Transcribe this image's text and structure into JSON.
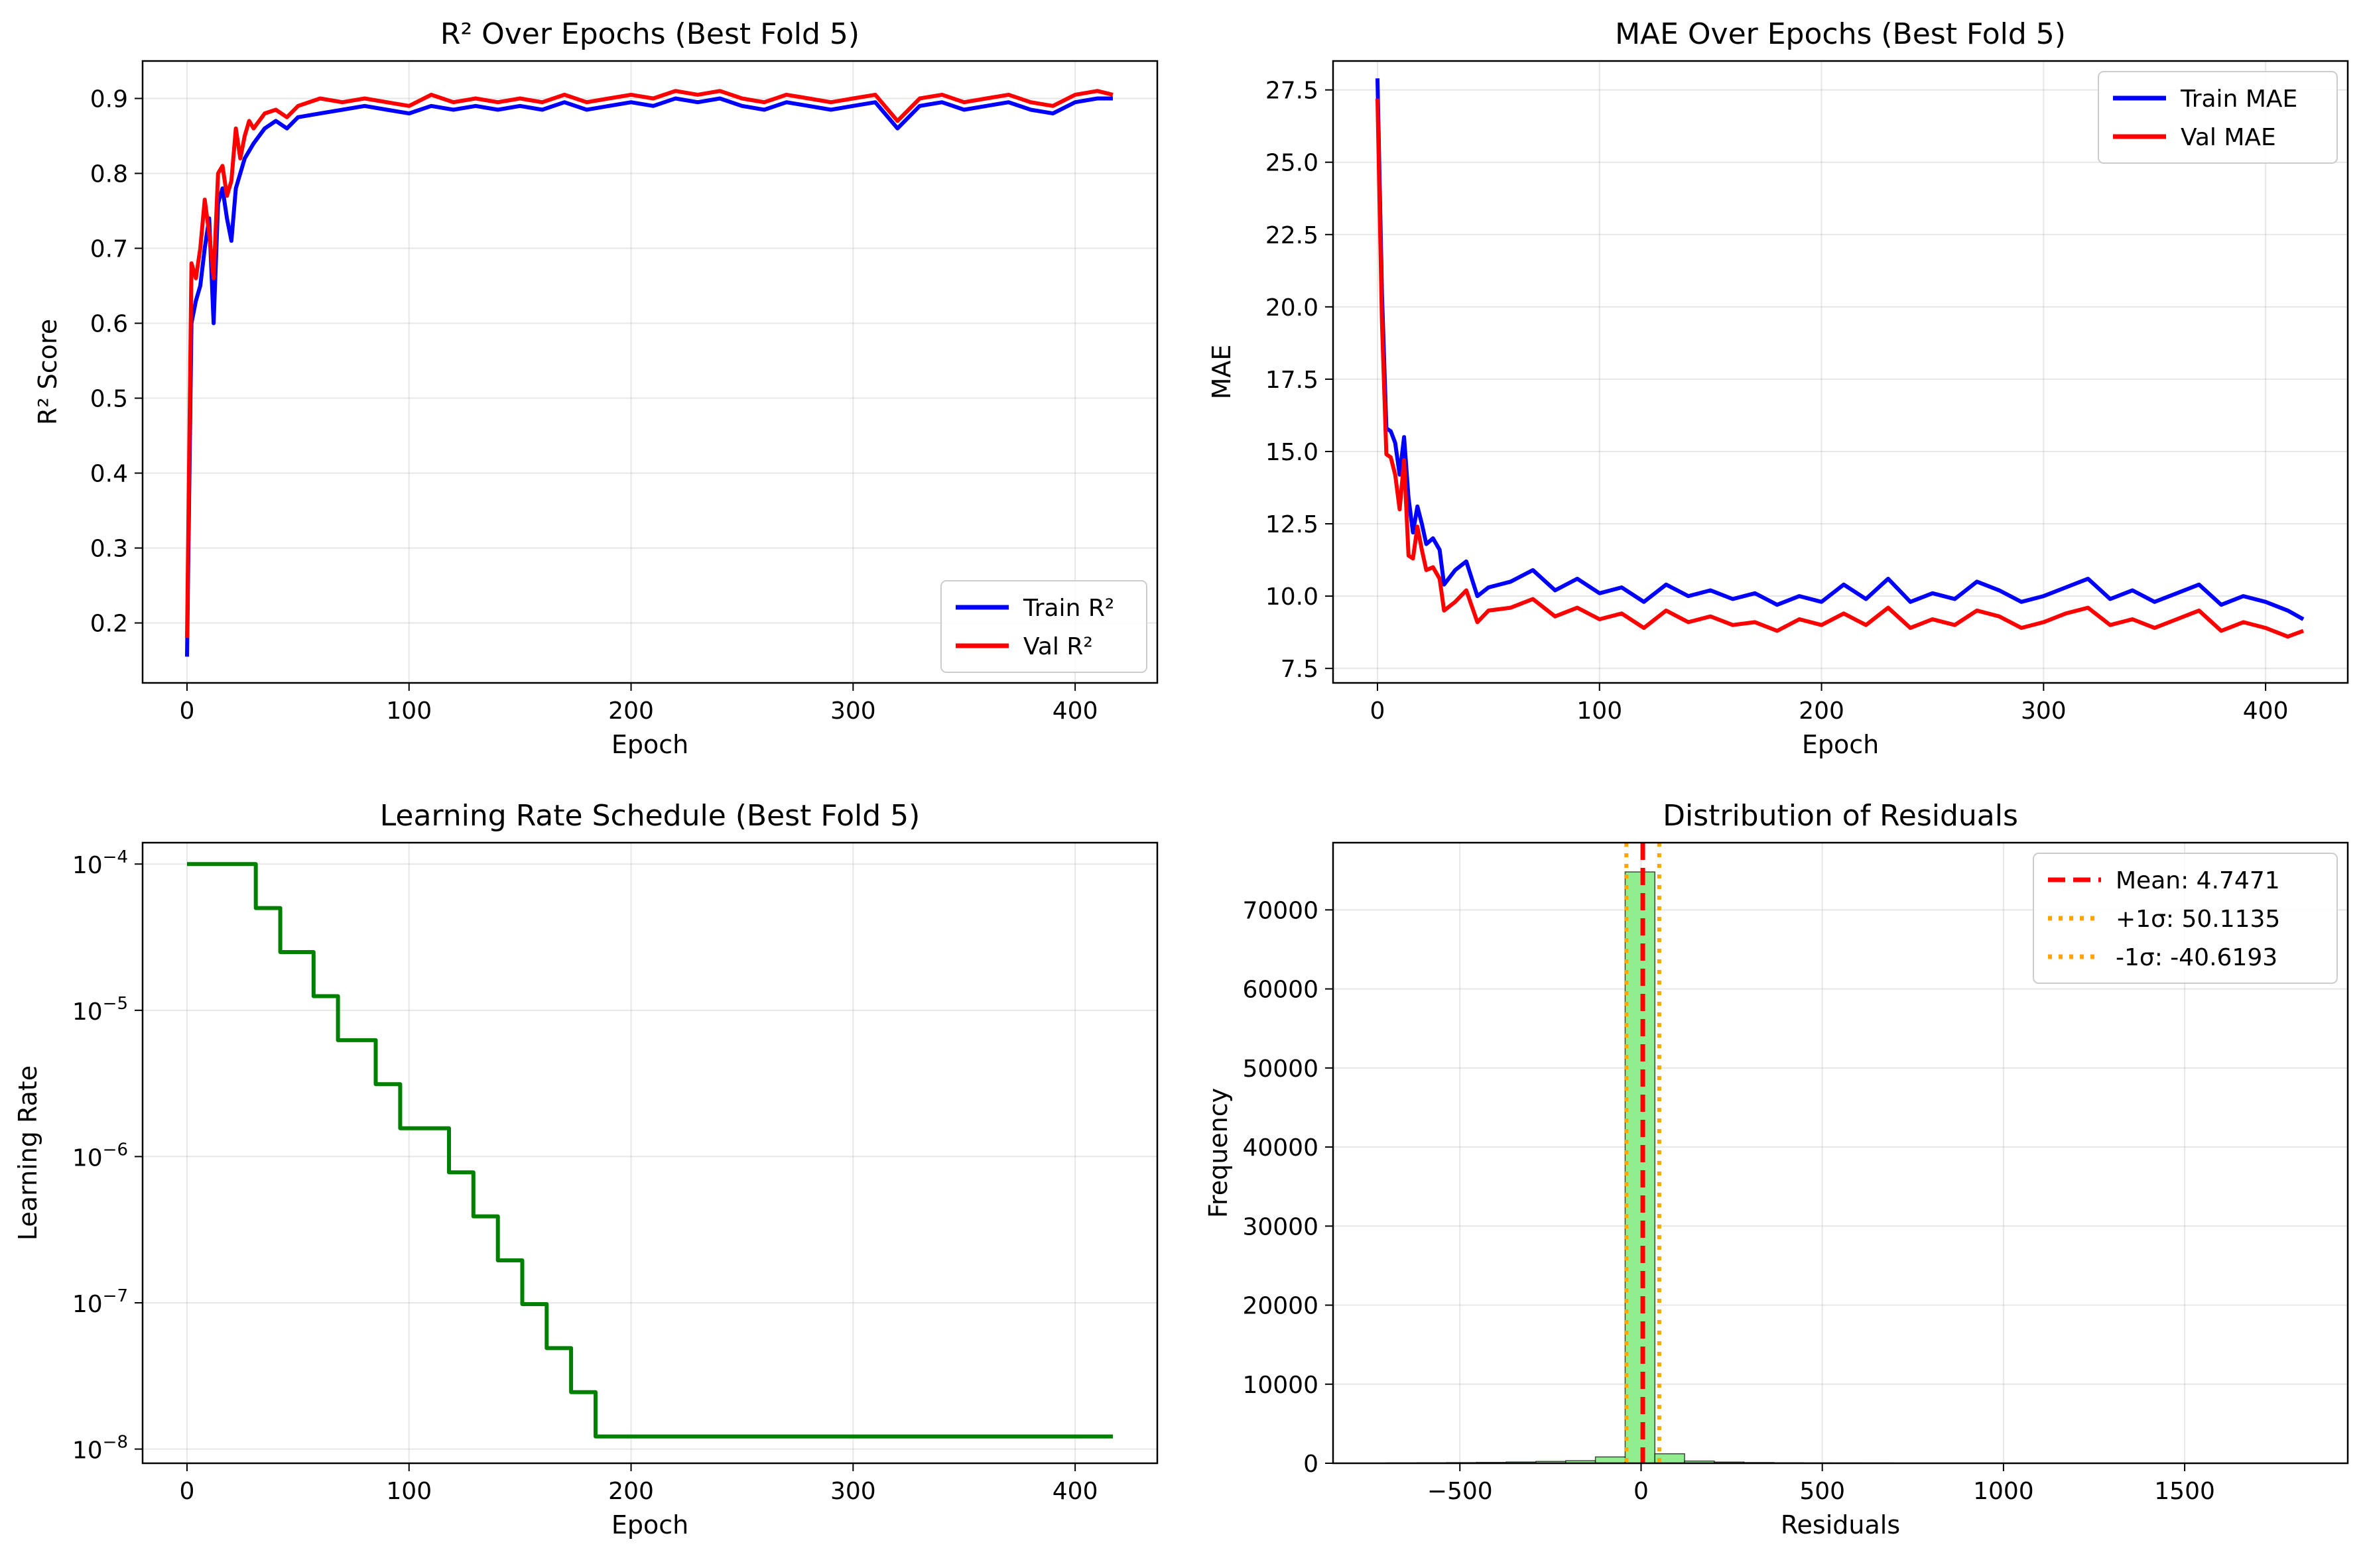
{
  "chart_data": [
    {
      "id": "r2",
      "type": "line",
      "title": "R² Over Epochs (Best Fold 5)",
      "xlabel": "Epoch",
      "ylabel": "R² Score",
      "xlim": [
        -20,
        437
      ],
      "ylim": [
        0.12,
        0.95
      ],
      "xticks": [
        0,
        100,
        200,
        300,
        400
      ],
      "yticks": [
        0.2,
        0.3,
        0.4,
        0.5,
        0.6,
        0.7,
        0.8,
        0.9
      ],
      "tick_labels_x": [
        "0",
        "100",
        "200",
        "300",
        "400"
      ],
      "tick_labels_y": [
        "0.2",
        "0.3",
        "0.4",
        "0.5",
        "0.6",
        "0.7",
        "0.8",
        "0.9"
      ],
      "grid": true,
      "legend_position": "lower-right",
      "series": [
        {
          "name": "Train R²",
          "color": "#0000ff",
          "x": [
            0,
            2,
            4,
            6,
            8,
            10,
            12,
            14,
            16,
            18,
            20,
            22,
            24,
            26,
            28,
            30,
            35,
            40,
            45,
            50,
            60,
            70,
            80,
            90,
            100,
            110,
            120,
            130,
            140,
            150,
            160,
            170,
            180,
            190,
            200,
            210,
            220,
            230,
            240,
            250,
            260,
            270,
            280,
            290,
            300,
            310,
            320,
            330,
            340,
            350,
            360,
            370,
            380,
            390,
            400,
            410,
            417
          ],
          "y": [
            0.155,
            0.6,
            0.63,
            0.65,
            0.7,
            0.74,
            0.6,
            0.76,
            0.78,
            0.74,
            0.71,
            0.78,
            0.8,
            0.82,
            0.83,
            0.84,
            0.86,
            0.87,
            0.86,
            0.875,
            0.88,
            0.885,
            0.89,
            0.885,
            0.88,
            0.89,
            0.885,
            0.89,
            0.885,
            0.89,
            0.885,
            0.895,
            0.885,
            0.89,
            0.895,
            0.89,
            0.9,
            0.895,
            0.9,
            0.89,
            0.885,
            0.895,
            0.89,
            0.885,
            0.89,
            0.895,
            0.86,
            0.89,
            0.895,
            0.885,
            0.89,
            0.895,
            0.885,
            0.88,
            0.895,
            0.9,
            0.9
          ]
        },
        {
          "name": "Val R²",
          "color": "#ff0000",
          "x": [
            0,
            2,
            4,
            6,
            8,
            10,
            12,
            14,
            16,
            18,
            20,
            22,
            24,
            26,
            28,
            30,
            35,
            40,
            45,
            50,
            60,
            70,
            80,
            90,
            100,
            110,
            120,
            130,
            140,
            150,
            160,
            170,
            180,
            190,
            200,
            210,
            220,
            230,
            240,
            250,
            260,
            270,
            280,
            290,
            300,
            310,
            320,
            330,
            340,
            350,
            360,
            370,
            380,
            390,
            400,
            410,
            417
          ],
          "y": [
            0.18,
            0.68,
            0.66,
            0.7,
            0.765,
            0.72,
            0.66,
            0.8,
            0.81,
            0.77,
            0.79,
            0.86,
            0.82,
            0.85,
            0.87,
            0.86,
            0.88,
            0.885,
            0.875,
            0.89,
            0.9,
            0.895,
            0.9,
            0.895,
            0.89,
            0.905,
            0.895,
            0.9,
            0.895,
            0.9,
            0.895,
            0.905,
            0.895,
            0.9,
            0.905,
            0.9,
            0.91,
            0.905,
            0.91,
            0.9,
            0.895,
            0.905,
            0.9,
            0.895,
            0.9,
            0.905,
            0.87,
            0.9,
            0.905,
            0.895,
            0.9,
            0.905,
            0.895,
            0.89,
            0.905,
            0.91,
            0.905
          ]
        }
      ]
    },
    {
      "id": "mae",
      "type": "line",
      "title": "MAE Over Epochs (Best Fold 5)",
      "xlabel": "Epoch",
      "ylabel": "MAE",
      "xlim": [
        -20,
        437
      ],
      "ylim": [
        7.0,
        28.5
      ],
      "xticks": [
        0,
        100,
        200,
        300,
        400
      ],
      "yticks": [
        7.5,
        10.0,
        12.5,
        15.0,
        17.5,
        20.0,
        22.5,
        25.0,
        27.5
      ],
      "tick_labels_x": [
        "0",
        "100",
        "200",
        "300",
        "400"
      ],
      "tick_labels_y": [
        "7.5",
        "10.0",
        "12.5",
        "15.0",
        "17.5",
        "20.0",
        "22.5",
        "25.0",
        "27.5"
      ],
      "grid": true,
      "legend_position": "upper-right",
      "series": [
        {
          "name": "Train MAE",
          "color": "#0000ff",
          "x": [
            0,
            2,
            4,
            6,
            8,
            10,
            12,
            14,
            16,
            18,
            20,
            22,
            25,
            28,
            30,
            35,
            40,
            45,
            50,
            60,
            70,
            80,
            90,
            100,
            110,
            120,
            130,
            140,
            150,
            160,
            170,
            180,
            190,
            200,
            210,
            220,
            230,
            240,
            250,
            260,
            270,
            280,
            290,
            300,
            310,
            320,
            330,
            340,
            350,
            360,
            370,
            380,
            390,
            400,
            410,
            417
          ],
          "y": [
            27.9,
            20.5,
            15.8,
            15.7,
            15.3,
            14.2,
            15.5,
            13.4,
            12.2,
            13.1,
            12.5,
            11.8,
            12.0,
            11.6,
            10.4,
            10.9,
            11.2,
            10.0,
            10.3,
            10.5,
            10.9,
            10.2,
            10.6,
            10.1,
            10.3,
            9.8,
            10.4,
            10.0,
            10.2,
            9.9,
            10.1,
            9.7,
            10.0,
            9.8,
            10.4,
            9.9,
            10.6,
            9.8,
            10.1,
            9.9,
            10.5,
            10.2,
            9.8,
            10.0,
            10.3,
            10.6,
            9.9,
            10.2,
            9.8,
            10.1,
            10.4,
            9.7,
            10.0,
            9.8,
            9.5,
            9.2
          ]
        },
        {
          "name": "Val MAE",
          "color": "#ff0000",
          "x": [
            0,
            2,
            4,
            6,
            8,
            10,
            12,
            14,
            16,
            18,
            20,
            22,
            25,
            28,
            30,
            35,
            40,
            45,
            50,
            60,
            70,
            80,
            90,
            100,
            110,
            120,
            130,
            140,
            150,
            160,
            170,
            180,
            190,
            200,
            210,
            220,
            230,
            240,
            250,
            260,
            270,
            280,
            290,
            300,
            310,
            320,
            330,
            340,
            350,
            360,
            370,
            380,
            390,
            400,
            410,
            417
          ],
          "y": [
            27.2,
            19.5,
            14.9,
            14.8,
            14.2,
            13.0,
            14.7,
            11.4,
            11.3,
            12.4,
            11.6,
            10.9,
            11.0,
            10.6,
            9.5,
            9.8,
            10.2,
            9.1,
            9.5,
            9.6,
            9.9,
            9.3,
            9.6,
            9.2,
            9.4,
            8.9,
            9.5,
            9.1,
            9.3,
            9.0,
            9.1,
            8.8,
            9.2,
            9.0,
            9.4,
            9.0,
            9.6,
            8.9,
            9.2,
            9.0,
            9.5,
            9.3,
            8.9,
            9.1,
            9.4,
            9.6,
            9.0,
            9.2,
            8.9,
            9.2,
            9.5,
            8.8,
            9.1,
            8.9,
            8.6,
            8.8
          ]
        }
      ]
    },
    {
      "id": "lr",
      "type": "line",
      "title": "Learning Rate Schedule (Best Fold 5)",
      "xlabel": "Epoch",
      "ylabel": "Learning Rate",
      "xscale": "linear",
      "yscale": "log",
      "xlim": [
        -20,
        437
      ],
      "ylim": [
        8e-09,
        0.00014
      ],
      "xticks": [
        0,
        100,
        200,
        300,
        400
      ],
      "yticks": [
        1e-08,
        1e-07,
        1e-06,
        1e-05,
        0.0001
      ],
      "tick_labels_x": [
        "0",
        "100",
        "200",
        "300",
        "400"
      ],
      "tick_labels_y": [
        {
          "base": "10",
          "exp": "−8"
        },
        {
          "base": "10",
          "exp": "−7"
        },
        {
          "base": "10",
          "exp": "−6"
        },
        {
          "base": "10",
          "exp": "−5"
        },
        {
          "base": "10",
          "exp": "−4"
        }
      ],
      "grid": true,
      "series": [
        {
          "name": "",
          "color": "#008000",
          "drawstyle": "steps-post",
          "x": [
            0,
            31,
            42,
            57,
            68,
            85,
            96,
            118,
            129,
            140,
            151,
            162,
            173,
            184,
            417
          ],
          "y": [
            0.0001,
            5e-05,
            2.5e-05,
            1.25e-05,
            6.25e-06,
            3.125e-06,
            1.5625e-06,
            7.8e-07,
            3.9e-07,
            1.95e-07,
            9.8e-08,
            4.9e-08,
            2.45e-08,
            1.22e-08,
            1.22e-08
          ]
        }
      ]
    },
    {
      "id": "residuals",
      "type": "bar",
      "subtype": "histogram",
      "title": "Distribution of Residuals",
      "xlabel": "Residuals",
      "ylabel": "Frequency",
      "xlim": [
        -850,
        1950
      ],
      "ylim": [
        0,
        78500
      ],
      "xticks": [
        -500,
        0,
        500,
        1000,
        1500
      ],
      "yticks": [
        0,
        10000,
        20000,
        30000,
        40000,
        50000,
        60000,
        70000
      ],
      "tick_labels_x": [
        "−500",
        "0",
        "500",
        "1000",
        "1500"
      ],
      "tick_labels_y": [
        "0",
        "10000",
        "20000",
        "30000",
        "40000",
        "50000",
        "60000",
        "70000"
      ],
      "grid": true,
      "legend_position": "upper-right",
      "bar_color": "#90ee90",
      "bin_edges": [
        -700,
        -618,
        -536,
        -454,
        -372,
        -290,
        -208,
        -126,
        -44,
        38,
        120,
        202,
        284,
        366,
        448,
        530,
        612,
        694,
        776,
        858,
        940,
        1022,
        1104,
        1186,
        1268,
        1350,
        1432,
        1514,
        1596,
        1678,
        1760
      ],
      "values": [
        40,
        60,
        80,
        110,
        160,
        230,
        320,
        800,
        74800,
        1200,
        280,
        150,
        90,
        60,
        40,
        30,
        25,
        20,
        15,
        12,
        10,
        8,
        6,
        5,
        4,
        3,
        3,
        2,
        2,
        2
      ],
      "vlines": [
        {
          "x": 4.7471,
          "label": "Mean: 4.7471",
          "color": "#ff0000",
          "style": "dashed"
        },
        {
          "x": 50.1135,
          "label": "+1σ: 50.1135",
          "color": "#ffa500",
          "style": "dotted"
        },
        {
          "x": -40.6193,
          "label": "-1σ: -40.6193",
          "color": "#ffa500",
          "style": "dotted"
        }
      ]
    }
  ]
}
